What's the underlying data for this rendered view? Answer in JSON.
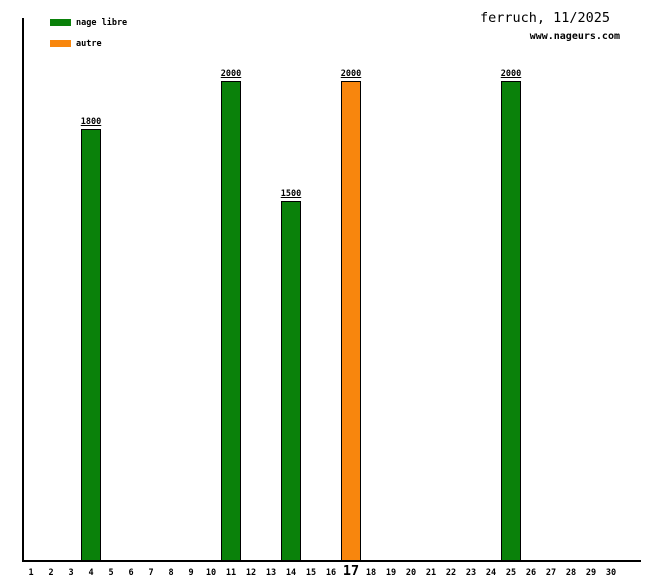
{
  "header": {
    "title": "ferruch, 11/2025",
    "subtitle": "www.nageurs.com"
  },
  "legend": {
    "position": "top-left",
    "items": [
      {
        "label": "nage libre",
        "color": "#0a810a"
      },
      {
        "label": "autre",
        "color": "#f8860d"
      }
    ]
  },
  "chart_data": {
    "type": "bar",
    "title": "ferruch, 11/2025",
    "subtitle": "www.nageurs.com",
    "xlabel": "",
    "ylabel": "",
    "x_tick_labels": [
      "1",
      "2",
      "3",
      "4",
      "5",
      "6",
      "7",
      "8",
      "9",
      "10",
      "11",
      "12",
      "13",
      "14",
      "15",
      "16",
      "17",
      "18",
      "19",
      "20",
      "21",
      "22",
      "23",
      "24",
      "25",
      "26",
      "27",
      "28",
      "29",
      "30"
    ],
    "highlighted_day": 17,
    "ylim": [
      0,
      2260
    ],
    "grid": false,
    "series": [
      {
        "name": "nage libre",
        "color": "#0a810a",
        "points": [
          {
            "day": 4,
            "value": 1800
          },
          {
            "day": 11,
            "value": 2000
          },
          {
            "day": 14,
            "value": 1500
          },
          {
            "day": 25,
            "value": 2000
          }
        ]
      },
      {
        "name": "autre",
        "color": "#f8860d",
        "points": [
          {
            "day": 17,
            "value": 2000
          }
        ]
      }
    ]
  }
}
